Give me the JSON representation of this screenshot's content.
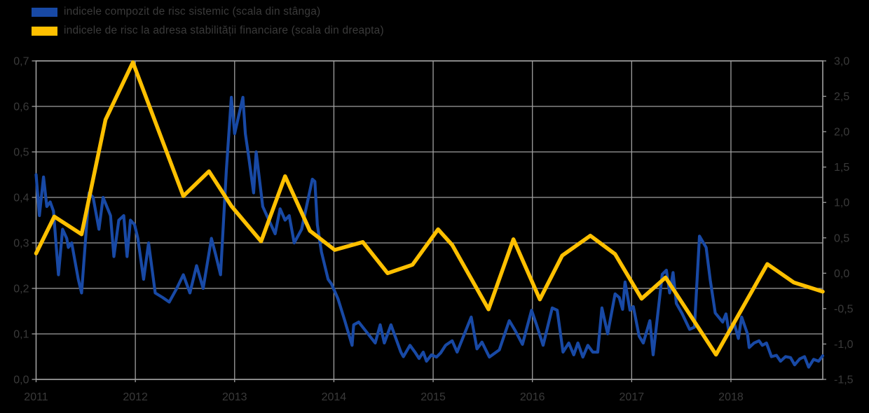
{
  "background_color": "#000000",
  "faint_text_color": "#3a3a3a",
  "legend": {
    "items": [
      {
        "label": "indicele compozit de risc sistemic (scala din stânga)",
        "color": "#1849a5"
      },
      {
        "label": "indicele de risc la adresa stabilității financiare (scala din dreapta)",
        "color": "#ffc000"
      }
    ]
  },
  "chart_data": {
    "type": "line",
    "title": "",
    "x_unit": "months since Jan 2011",
    "x_axis": {
      "labels": [
        "2011",
        "2012",
        "2013",
        "2014",
        "2015",
        "2016",
        "2017",
        "2018"
      ],
      "months_per_label": 12,
      "range": [
        0,
        95.1
      ]
    },
    "y_left": {
      "min": 0.0,
      "max": 0.7,
      "step": 0.1,
      "ticks": [
        "0,7",
        "0,6",
        "0,5",
        "0,4",
        "0,3",
        "0,2",
        "0,1",
        "0,0"
      ]
    },
    "y_right": {
      "min": -1.5,
      "max": 3.0,
      "step": 0.5,
      "ticks": [
        "3,0",
        "2,5",
        "2,0",
        "1,5",
        "1,0",
        "0,5",
        "0,0",
        "-0,5",
        "-1,0",
        "-1,5"
      ]
    },
    "grid": {
      "on": true,
      "color": "#a0a0a0",
      "horizontal_follows": "y_left"
    },
    "legend_position": "top-left",
    "series": [
      {
        "name": "indicele compozit de risc sistemic",
        "axis": "left",
        "color": "#1849a5",
        "width": 4.2,
        "points": [
          [
            0,
            0.45
          ],
          [
            0.4,
            0.36
          ],
          [
            0.9,
            0.445
          ],
          [
            1.3,
            0.38
          ],
          [
            1.7,
            0.39
          ],
          [
            2.1,
            0.37
          ],
          [
            2.7,
            0.23
          ],
          [
            3.2,
            0.33
          ],
          [
            3.7,
            0.31
          ],
          [
            3.9,
            0.29
          ],
          [
            4.3,
            0.3
          ],
          [
            5.1,
            0.22
          ],
          [
            5.5,
            0.19
          ],
          [
            6.4,
            0.41
          ],
          [
            6.9,
            0.4
          ],
          [
            7.6,
            0.33
          ],
          [
            8.1,
            0.4
          ],
          [
            9,
            0.36
          ],
          [
            9.4,
            0.27
          ],
          [
            10,
            0.35
          ],
          [
            10.6,
            0.36
          ],
          [
            11,
            0.27
          ],
          [
            11.4,
            0.35
          ],
          [
            11.9,
            0.34
          ],
          [
            12.3,
            0.31
          ],
          [
            13,
            0.22
          ],
          [
            13.6,
            0.3
          ],
          [
            14.4,
            0.19
          ],
          [
            15.3,
            0.18
          ],
          [
            16.1,
            0.17
          ],
          [
            17,
            0.2
          ],
          [
            17.8,
            0.23
          ],
          [
            18.6,
            0.19
          ],
          [
            19.4,
            0.25
          ],
          [
            20.2,
            0.2
          ],
          [
            21.2,
            0.31
          ],
          [
            21.7,
            0.275
          ],
          [
            22.3,
            0.23
          ],
          [
            23,
            0.46
          ],
          [
            23.6,
            0.62
          ],
          [
            24,
            0.54
          ],
          [
            25,
            0.62
          ],
          [
            25.3,
            0.54
          ],
          [
            25.7,
            0.49
          ],
          [
            26.3,
            0.41
          ],
          [
            26.6,
            0.5
          ],
          [
            27.4,
            0.38
          ],
          [
            28.4,
            0.34
          ],
          [
            28.9,
            0.32
          ],
          [
            29.5,
            0.375
          ],
          [
            30.1,
            0.35
          ],
          [
            30.6,
            0.36
          ],
          [
            31.2,
            0.3
          ],
          [
            32.1,
            0.33
          ],
          [
            33.4,
            0.44
          ],
          [
            33.7,
            0.435
          ],
          [
            34,
            0.34
          ],
          [
            34.5,
            0.28
          ],
          [
            35.3,
            0.22
          ],
          [
            35.7,
            0.21
          ],
          [
            36.5,
            0.177
          ],
          [
            37.3,
            0.13
          ],
          [
            38.2,
            0.075
          ],
          [
            38.4,
            0.12
          ],
          [
            39,
            0.126
          ],
          [
            39.7,
            0.11
          ],
          [
            41,
            0.08
          ],
          [
            41.6,
            0.12
          ],
          [
            42.1,
            0.08
          ],
          [
            42.9,
            0.12
          ],
          [
            43.5,
            0.09
          ],
          [
            44.1,
            0.06
          ],
          [
            44.4,
            0.05
          ],
          [
            45.2,
            0.075
          ],
          [
            45.8,
            0.06
          ],
          [
            46.3,
            0.046
          ],
          [
            46.8,
            0.06
          ],
          [
            47.2,
            0.04
          ],
          [
            47.8,
            0.054
          ],
          [
            48.4,
            0.049
          ],
          [
            48.9,
            0.058
          ],
          [
            49.5,
            0.075
          ],
          [
            50.3,
            0.085
          ],
          [
            50.9,
            0.06
          ],
          [
            52.6,
            0.137
          ],
          [
            53.3,
            0.067
          ],
          [
            53.9,
            0.082
          ],
          [
            54.8,
            0.049
          ],
          [
            56,
            0.065
          ],
          [
            57.2,
            0.129
          ],
          [
            57.9,
            0.108
          ],
          [
            58.8,
            0.077
          ],
          [
            59.9,
            0.152
          ],
          [
            60.5,
            0.12
          ],
          [
            61.3,
            0.075
          ],
          [
            62.4,
            0.157
          ],
          [
            63,
            0.152
          ],
          [
            63.7,
            0.06
          ],
          [
            64.4,
            0.08
          ],
          [
            65,
            0.054
          ],
          [
            65.5,
            0.08
          ],
          [
            66.1,
            0.049
          ],
          [
            66.7,
            0.075
          ],
          [
            67.3,
            0.06
          ],
          [
            67.9,
            0.06
          ],
          [
            68.4,
            0.157
          ],
          [
            69.1,
            0.1
          ],
          [
            70,
            0.188
          ],
          [
            70.5,
            0.18
          ],
          [
            70.9,
            0.154
          ],
          [
            71.2,
            0.214
          ],
          [
            71.8,
            0.152
          ],
          [
            72.2,
            0.16
          ],
          [
            72.9,
            0.095
          ],
          [
            73.4,
            0.08
          ],
          [
            74.2,
            0.129
          ],
          [
            74.6,
            0.054
          ],
          [
            75.7,
            0.231
          ],
          [
            76.2,
            0.24
          ],
          [
            76.6,
            0.19
          ],
          [
            77,
            0.235
          ],
          [
            77.4,
            0.167
          ],
          [
            78.1,
            0.145
          ],
          [
            79,
            0.11
          ],
          [
            79.6,
            0.115
          ],
          [
            80.2,
            0.315
          ],
          [
            81,
            0.29
          ],
          [
            81.5,
            0.218
          ],
          [
            82.1,
            0.146
          ],
          [
            83,
            0.126
          ],
          [
            83.4,
            0.144
          ],
          [
            83.8,
            0.1
          ],
          [
            84.4,
            0.123
          ],
          [
            84.9,
            0.09
          ],
          [
            85.3,
            0.137
          ],
          [
            86,
            0.1
          ],
          [
            86.2,
            0.07
          ],
          [
            86.8,
            0.08
          ],
          [
            87.4,
            0.085
          ],
          [
            87.8,
            0.075
          ],
          [
            88.3,
            0.08
          ],
          [
            88.9,
            0.05
          ],
          [
            89.5,
            0.053
          ],
          [
            90,
            0.04
          ],
          [
            90.6,
            0.05
          ],
          [
            91.2,
            0.048
          ],
          [
            91.7,
            0.032
          ],
          [
            92.3,
            0.045
          ],
          [
            92.9,
            0.05
          ],
          [
            93.4,
            0.027
          ],
          [
            94,
            0.044
          ],
          [
            94.6,
            0.04
          ],
          [
            95.1,
            0.052
          ]
        ]
      },
      {
        "name": "indicele de risc la adresa stabilității financiare",
        "axis": "right",
        "color": "#ffc000",
        "width": 5.5,
        "points": [
          [
            0,
            0.28
          ],
          [
            2.2,
            0.8
          ],
          [
            5.5,
            0.55
          ],
          [
            8.4,
            2.17
          ],
          [
            11.7,
            2.98
          ],
          [
            14.7,
            2.05
          ],
          [
            17.8,
            1.09
          ],
          [
            20.9,
            1.44
          ],
          [
            23.6,
            0.95
          ],
          [
            27.2,
            0.45
          ],
          [
            30.1,
            1.37
          ],
          [
            33.1,
            0.6
          ],
          [
            36.1,
            0.33
          ],
          [
            39.5,
            0.44
          ],
          [
            42.5,
            0.0
          ],
          [
            45.5,
            0.12
          ],
          [
            48.6,
            0.62
          ],
          [
            50.3,
            0.4
          ],
          [
            54.7,
            -0.51
          ],
          [
            57.7,
            0.48
          ],
          [
            60.9,
            -0.37
          ],
          [
            63.6,
            0.25
          ],
          [
            67,
            0.53
          ],
          [
            70,
            0.27
          ],
          [
            73.2,
            -0.36
          ],
          [
            76.1,
            -0.06
          ],
          [
            82.2,
            -1.15
          ],
          [
            88.4,
            0.13
          ],
          [
            91.6,
            -0.13
          ],
          [
            95.1,
            -0.26
          ]
        ]
      }
    ]
  }
}
